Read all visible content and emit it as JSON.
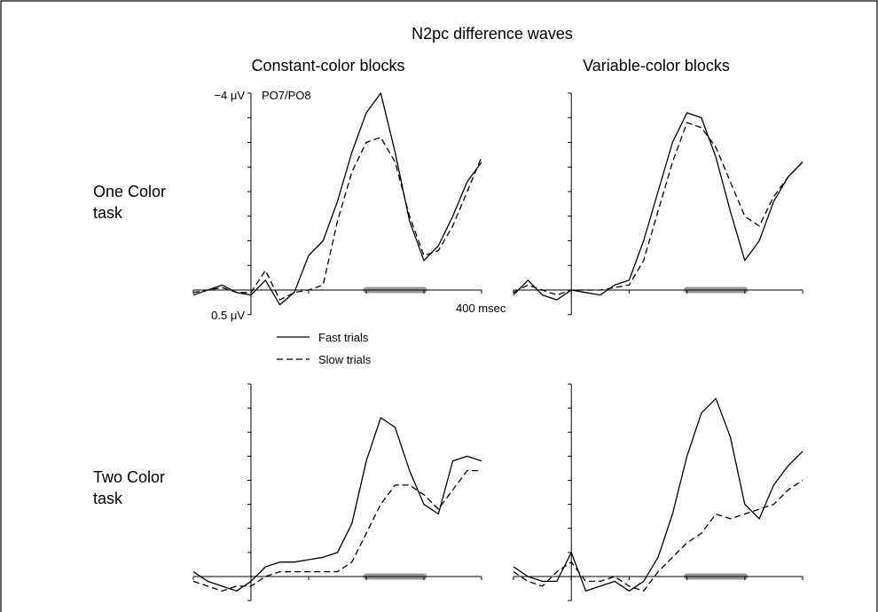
{
  "figure": {
    "title": "N2pc difference waves",
    "column_titles": [
      "Constant-color blocks",
      "Variable-color blocks"
    ],
    "row_titles": [
      [
        "One Color",
        "task"
      ],
      [
        "Two Color",
        "task"
      ]
    ],
    "electrode_label": "PO7/PO8",
    "y_top_label": "−4 μV",
    "y_bottom_label": "0.5 μV",
    "x_end_label": "400 msec",
    "legend": [
      {
        "label": "Fast trials",
        "style": "solid"
      },
      {
        "label": "Slow trials",
        "style": "dashed"
      }
    ],
    "colors": {
      "line": "#000000",
      "bar": "#999999",
      "frame": "#000000"
    }
  },
  "chart_data": [
    {
      "type": "line",
      "row": "One Color task",
      "column": "Constant-color blocks",
      "x_unit": "msec",
      "y_unit": "μV",
      "xlim": [
        -100,
        400
      ],
      "ylim": [
        0.5,
        -4
      ],
      "y_inverted": true,
      "highlight_window": [
        200,
        300
      ],
      "x": [
        -100,
        -75,
        -50,
        -25,
        0,
        25,
        50,
        75,
        100,
        125,
        150,
        175,
        200,
        225,
        250,
        275,
        300,
        325,
        350,
        375,
        400
      ],
      "series": [
        {
          "name": "Fast trials",
          "style": "solid",
          "values": [
            0.1,
            0.0,
            -0.1,
            0.05,
            0.1,
            -0.2,
            0.3,
            0.05,
            -0.7,
            -1.0,
            -1.8,
            -2.8,
            -3.6,
            -4.0,
            -2.8,
            -1.4,
            -0.6,
            -0.9,
            -1.5,
            -2.2,
            -2.6
          ]
        },
        {
          "name": "Slow trials",
          "style": "dashed",
          "values": [
            0.05,
            0.0,
            -0.05,
            0.05,
            0.05,
            -0.4,
            0.2,
            0.05,
            0.0,
            -0.1,
            -1.4,
            -2.4,
            -3.0,
            -3.1,
            -2.6,
            -1.5,
            -0.7,
            -0.8,
            -1.3,
            -2.0,
            -2.7
          ]
        }
      ]
    },
    {
      "type": "line",
      "row": "One Color task",
      "column": "Variable-color blocks",
      "x_unit": "msec",
      "y_unit": "μV",
      "xlim": [
        -100,
        400
      ],
      "ylim": [
        0.5,
        -4
      ],
      "y_inverted": true,
      "highlight_window": [
        200,
        300
      ],
      "x": [
        -100,
        -75,
        -50,
        -25,
        0,
        25,
        50,
        75,
        100,
        125,
        150,
        175,
        200,
        225,
        250,
        275,
        300,
        325,
        350,
        375,
        400
      ],
      "series": [
        {
          "name": "Fast trials",
          "style": "solid",
          "values": [
            0.1,
            -0.2,
            0.1,
            0.2,
            0.0,
            0.05,
            0.1,
            -0.1,
            -0.2,
            -1.0,
            -2.0,
            -3.0,
            -3.6,
            -3.5,
            -2.7,
            -1.6,
            -0.6,
            -1.0,
            -1.8,
            -2.3,
            -2.6
          ]
        },
        {
          "name": "Slow trials",
          "style": "dashed",
          "values": [
            0.05,
            -0.1,
            0.0,
            0.1,
            0.0,
            0.0,
            0.0,
            -0.05,
            -0.1,
            -0.6,
            -1.6,
            -2.6,
            -3.4,
            -3.3,
            -2.9,
            -2.2,
            -1.5,
            -1.3,
            -1.9,
            -2.3,
            -2.6
          ]
        }
      ]
    },
    {
      "type": "line",
      "row": "Two Color task",
      "column": "Constant-color blocks",
      "x_unit": "msec",
      "y_unit": "μV",
      "xlim": [
        -100,
        400
      ],
      "ylim": [
        0.5,
        -4
      ],
      "y_inverted": true,
      "highlight_window": [
        200,
        300
      ],
      "x": [
        -100,
        -75,
        -50,
        -25,
        0,
        25,
        50,
        75,
        100,
        125,
        150,
        175,
        200,
        225,
        250,
        275,
        300,
        325,
        350,
        375,
        400
      ],
      "series": [
        {
          "name": "Fast trials",
          "style": "solid",
          "values": [
            -0.1,
            0.1,
            0.2,
            0.3,
            0.1,
            -0.2,
            -0.3,
            -0.3,
            -0.35,
            -0.4,
            -0.5,
            -1.1,
            -2.4,
            -3.3,
            -3.1,
            -2.2,
            -1.5,
            -1.3,
            -2.4,
            -2.5,
            -2.4
          ]
        },
        {
          "name": "Slow trials",
          "style": "dashed",
          "values": [
            0.1,
            0.2,
            0.3,
            0.2,
            0.2,
            0.0,
            -0.1,
            -0.1,
            -0.1,
            -0.1,
            -0.1,
            -0.3,
            -0.9,
            -1.5,
            -1.9,
            -1.9,
            -1.7,
            -1.4,
            -1.8,
            -2.2,
            -2.2
          ]
        }
      ]
    },
    {
      "type": "line",
      "row": "Two Color task",
      "column": "Variable-color blocks",
      "x_unit": "msec",
      "y_unit": "μV",
      "xlim": [
        -100,
        400
      ],
      "ylim": [
        0.5,
        -4
      ],
      "y_inverted": true,
      "highlight_window": [
        200,
        300
      ],
      "x": [
        -100,
        -75,
        -50,
        -25,
        0,
        25,
        50,
        75,
        100,
        125,
        150,
        175,
        200,
        225,
        250,
        275,
        300,
        325,
        350,
        375,
        400
      ],
      "series": [
        {
          "name": "Fast trials",
          "style": "solid",
          "values": [
            -0.2,
            0.0,
            0.1,
            0.1,
            -0.5,
            0.3,
            0.2,
            0.1,
            0.3,
            0.1,
            -0.4,
            -1.3,
            -2.5,
            -3.4,
            -3.7,
            -2.9,
            -1.5,
            -1.2,
            -1.9,
            -2.3,
            -2.6
          ]
        },
        {
          "name": "Slow trials",
          "style": "dashed",
          "values": [
            -0.1,
            0.1,
            0.2,
            -0.1,
            -0.3,
            0.1,
            0.1,
            0.0,
            0.2,
            0.3,
            -0.1,
            -0.4,
            -0.7,
            -0.9,
            -1.3,
            -1.2,
            -1.3,
            -1.4,
            -1.5,
            -1.8,
            -2.0
          ]
        }
      ]
    }
  ]
}
